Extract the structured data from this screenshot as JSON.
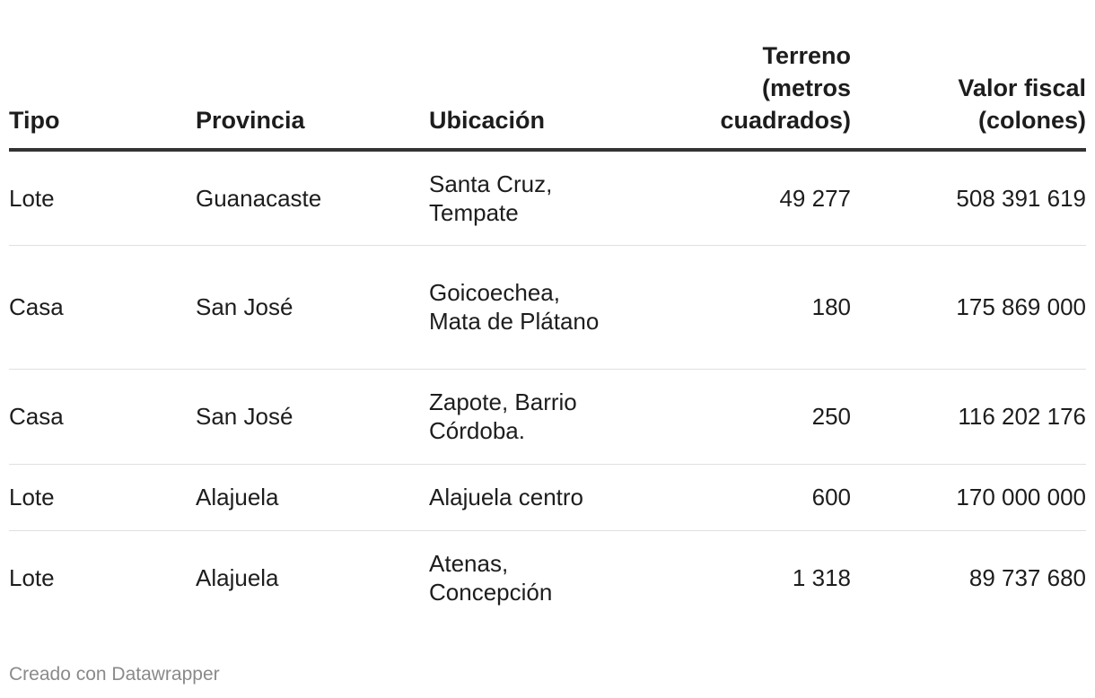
{
  "chart_data": {
    "type": "table",
    "columns": [
      "Tipo",
      "Provincia",
      "Ubicación",
      "Terreno (metros cuadrados)",
      "Valor fiscal (colones)"
    ],
    "rows": [
      [
        "Lote",
        "Guanacaste",
        "Santa Cruz, Tempate",
        "49 277",
        "508 391 619"
      ],
      [
        "Casa",
        "San José",
        "Goicoechea, Mata de Plátano",
        "180",
        "175 869 000"
      ],
      [
        "Casa",
        "San José",
        "Zapote, Barrio Córdoba.",
        "250",
        "116 202 176"
      ],
      [
        "Lote",
        "Alajuela",
        "Alajuela centro",
        "600",
        "170 000 000"
      ],
      [
        "Lote",
        "Alajuela",
        "Atenas, Concepción",
        "1 318",
        "89 737 680"
      ]
    ],
    "footer": "Creado con Datawrapper"
  }
}
